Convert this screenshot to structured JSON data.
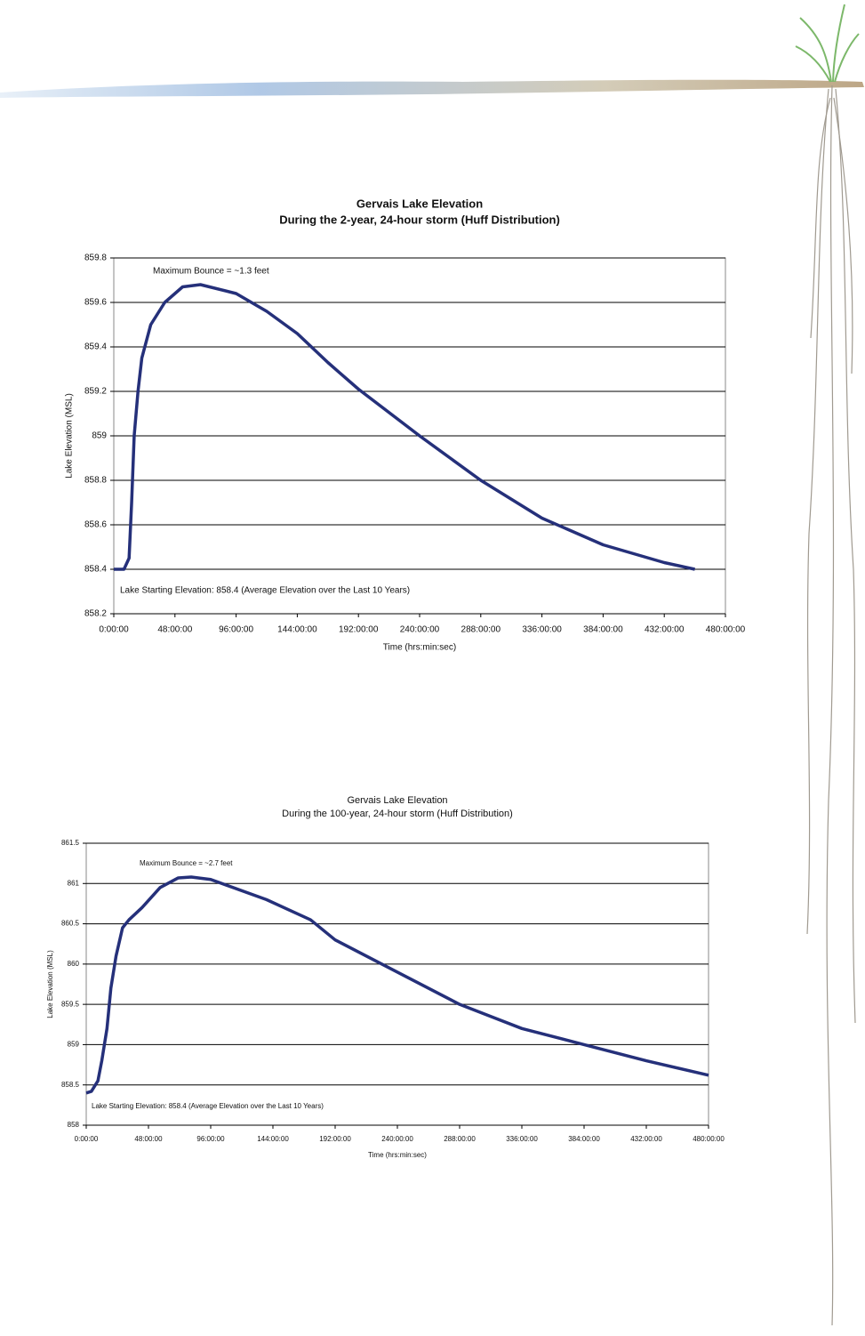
{
  "chart_data": [
    {
      "type": "line",
      "title": "Gervais Lake Elevation",
      "subtitle": "During the 2-year, 24-hour storm (Huff Distribution)",
      "x_label": "Time (hrs:min:sec)",
      "y_label": "Lake Elevation (MSL)",
      "annotations": [
        "Maximum Bounce = ~1.3 feet",
        "Lake Starting Elevation: 858.4 (Average Elevation over the Last 10 Years)"
      ],
      "color": "#25307a",
      "x": [
        0,
        8,
        12,
        14,
        16,
        19,
        22,
        29,
        40,
        54,
        68,
        96,
        120,
        144,
        168,
        192,
        240,
        288,
        336,
        384,
        432,
        456
      ],
      "values": [
        858.4,
        858.4,
        858.45,
        858.7,
        859.0,
        859.2,
        859.35,
        859.5,
        859.6,
        859.67,
        859.68,
        859.64,
        859.56,
        859.46,
        859.33,
        859.21,
        859.0,
        858.8,
        858.63,
        858.51,
        858.43,
        858.4
      ],
      "xlim": [
        0,
        480
      ],
      "xticks": [
        {
          "value": 0,
          "label": "0:00:00"
        },
        {
          "value": 48,
          "label": "48:00:00"
        },
        {
          "value": 96,
          "label": "96:00:00"
        },
        {
          "value": 144,
          "label": "144:00:00"
        },
        {
          "value": 192,
          "label": "192:00:00"
        },
        {
          "value": 240,
          "label": "240:00:00"
        },
        {
          "value": 288,
          "label": "288:00:00"
        },
        {
          "value": 336,
          "label": "336:00:00"
        },
        {
          "value": 384,
          "label": "384:00:00"
        },
        {
          "value": 432,
          "label": "432:00:00"
        },
        {
          "value": 480,
          "label": "480:00:00"
        }
      ],
      "ylim": [
        858.2,
        859.8
      ],
      "yticks": [
        858.2,
        858.4,
        858.6,
        858.8,
        859,
        859.2,
        859.4,
        859.6,
        859.8
      ],
      "grid": true
    },
    {
      "type": "line",
      "title": "Gervais Lake Elevation",
      "subtitle": "During the 100-year, 24-hour storm (Huff Distribution)",
      "x_label": "Time (hrs:min:sec)",
      "y_label": "Lake Elevation (MSL)",
      "annotations": [
        "Maximum Bounce = ~2.7 feet",
        "Lake Starting Elevation: 858.4 (Average Elevation over the Last 10 Years)"
      ],
      "color": "#25307a",
      "x": [
        0,
        4,
        9,
        12,
        16,
        19,
        23,
        28,
        33,
        43,
        57,
        71,
        81,
        96,
        139,
        173,
        192,
        240,
        288,
        336,
        384,
        432,
        480
      ],
      "values": [
        858.4,
        858.42,
        858.55,
        858.8,
        859.2,
        859.7,
        860.1,
        860.45,
        860.55,
        860.7,
        860.95,
        861.07,
        861.08,
        861.05,
        860.8,
        860.55,
        860.3,
        859.9,
        859.5,
        859.2,
        859.0,
        858.8,
        858.62
      ],
      "xlim": [
        0,
        480
      ],
      "xticks": [
        {
          "value": 0,
          "label": "0:00:00"
        },
        {
          "value": 48,
          "label": "48:00:00"
        },
        {
          "value": 96,
          "label": "96:00:00"
        },
        {
          "value": 144,
          "label": "144:00:00"
        },
        {
          "value": 192,
          "label": "192:00:00"
        },
        {
          "value": 240,
          "label": "240:00:00"
        },
        {
          "value": 288,
          "label": "288:00:00"
        },
        {
          "value": 336,
          "label": "336:00:00"
        },
        {
          "value": 384,
          "label": "384:00:00"
        },
        {
          "value": 432,
          "label": "432:00:00"
        },
        {
          "value": 480,
          "label": "480:00:00"
        }
      ],
      "ylim": [
        858,
        861.5
      ],
      "yticks": [
        858,
        858.5,
        859,
        859.5,
        860,
        860.5,
        861,
        861.5
      ],
      "grid": true
    }
  ]
}
